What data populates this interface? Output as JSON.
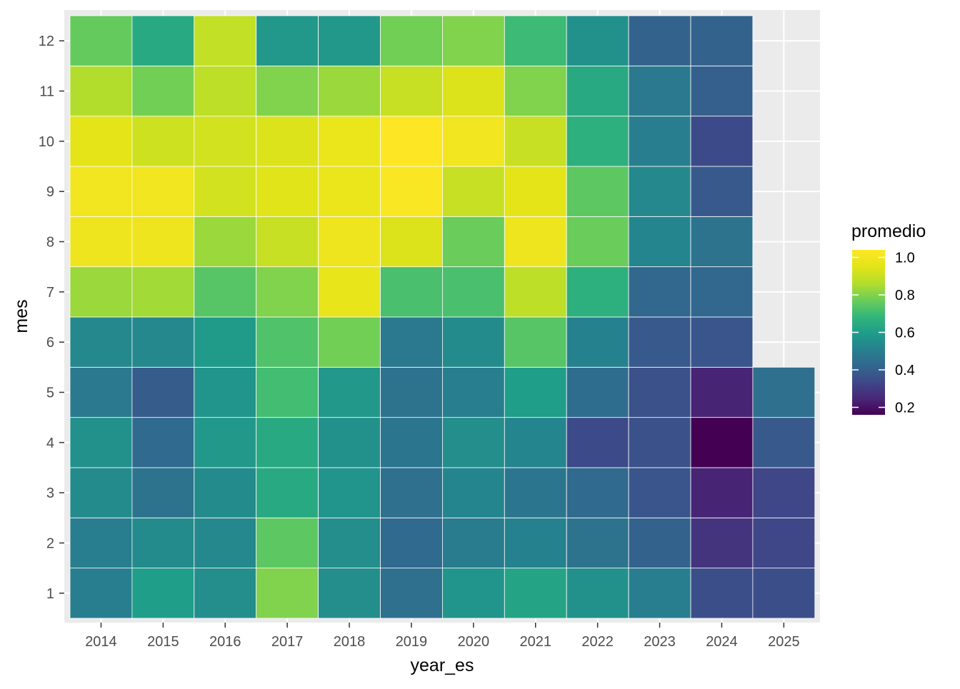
{
  "chart_data": {
    "type": "heatmap",
    "title": "",
    "xlabel": "year_es",
    "ylabel": "mes",
    "x": [
      "2014",
      "2015",
      "2016",
      "2017",
      "2018",
      "2019",
      "2020",
      "2021",
      "2022",
      "2023",
      "2024",
      "2025"
    ],
    "y": [
      "1",
      "2",
      "3",
      "4",
      "5",
      "6",
      "7",
      "8",
      "9",
      "10",
      "11",
      "12"
    ],
    "values": [
      [
        0.5,
        0.6,
        0.55,
        0.8,
        0.55,
        0.45,
        0.57,
        0.62,
        0.56,
        0.5,
        0.35,
        0.35
      ],
      [
        0.5,
        0.54,
        0.53,
        0.75,
        0.55,
        0.43,
        0.49,
        0.51,
        0.46,
        0.41,
        0.28,
        0.33
      ],
      [
        0.54,
        0.46,
        0.54,
        0.64,
        0.57,
        0.45,
        0.52,
        0.47,
        0.43,
        0.37,
        0.24,
        0.33
      ],
      [
        0.56,
        0.43,
        0.58,
        0.64,
        0.56,
        0.47,
        0.55,
        0.52,
        0.34,
        0.36,
        0.16,
        0.38
      ],
      [
        0.48,
        0.39,
        0.57,
        0.71,
        0.58,
        0.46,
        0.5,
        0.6,
        0.44,
        0.36,
        0.24,
        0.45
      ]
    ],
    "values_upper": [
      [
        0.53,
        0.53,
        0.59,
        0.73,
        0.78,
        0.48,
        0.54,
        0.74,
        0.51,
        0.38,
        0.37
      ],
      [
        0.83,
        0.84,
        0.74,
        0.8,
        0.97,
        0.72,
        0.72,
        0.88,
        0.66,
        0.42,
        0.42
      ],
      [
        0.99,
        0.99,
        0.83,
        0.9,
        0.99,
        0.94,
        0.77,
        0.99,
        0.77,
        0.52,
        0.46
      ],
      [
        1.0,
        1.0,
        0.92,
        0.95,
        0.98,
        1.03,
        0.9,
        0.96,
        0.75,
        0.53,
        0.38
      ],
      [
        0.96,
        0.91,
        0.92,
        0.94,
        0.98,
        1.04,
        1.0,
        0.9,
        0.66,
        0.5,
        0.34
      ],
      [
        0.86,
        0.78,
        0.88,
        0.8,
        0.83,
        0.9,
        0.94,
        0.8,
        0.64,
        0.48,
        0.4
      ],
      [
        0.76,
        0.64,
        0.89,
        0.58,
        0.58,
        0.78,
        0.8,
        0.7,
        0.56,
        0.41,
        0.41
      ]
    ],
    "color_scale": {
      "name": "promedio",
      "palette": "viridis",
      "limits": [
        0.16,
        1.04
      ],
      "breaks": [
        "0.2",
        "0.4",
        "0.6",
        "0.8",
        "1.0"
      ],
      "low_color": "#440154",
      "high_color": "#fde725"
    },
    "grid": true,
    "panel_background": "#ebebeb",
    "legend_position": "right"
  }
}
